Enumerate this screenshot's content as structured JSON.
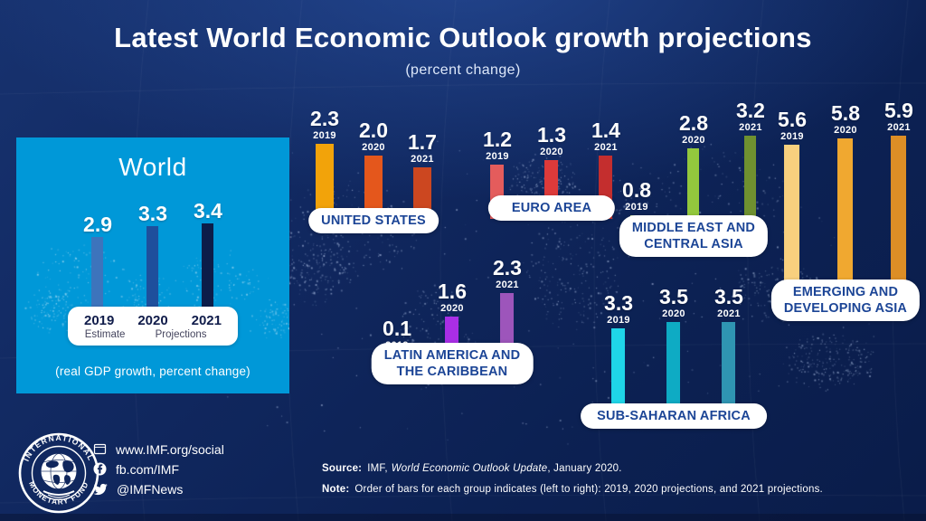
{
  "header": {
    "title": "Latest World Economic Outlook growth projections",
    "subtitle": "(percent change)"
  },
  "world_panel": {
    "title": "World",
    "caption": "(real GDP growth, percent change)",
    "panel_color": "#0098d8",
    "legend": {
      "years": [
        "2019",
        "2020",
        "2021"
      ],
      "estimate_label": "Estimate",
      "projections_label": "Projections"
    }
  },
  "chart_data": {
    "type": "bar",
    "title": "Latest World Economic Outlook growth projections",
    "subtitle": "(percent change)",
    "unit": "real GDP growth, percent change",
    "years": [
      "2019",
      "2020",
      "2021"
    ],
    "year_notes": {
      "2019": "Estimate",
      "2020": "Projections",
      "2021": "Projections"
    },
    "legend_position": "world-panel pill",
    "grid": false,
    "groups": [
      {
        "label": "World",
        "label_lines": [
          "World"
        ],
        "values": [
          2.9,
          3.3,
          3.4
        ],
        "colors": [
          "#3d74bc",
          "#1e4f9c",
          "#0c1d49"
        ]
      },
      {
        "label": "UNITED STATES",
        "label_lines": [
          "UNITED STATES"
        ],
        "values": [
          2.3,
          2.0,
          1.7
        ],
        "colors": [
          "#f2a30a",
          "#e4571c",
          "#cc4720"
        ]
      },
      {
        "label": "EURO AREA",
        "label_lines": [
          "EURO AREA"
        ],
        "values": [
          1.2,
          1.3,
          1.4
        ],
        "colors": [
          "#e45c5c",
          "#dd3a3a",
          "#c42e2e"
        ]
      },
      {
        "label": "MIDDLE EAST AND CENTRAL ASIA",
        "label_lines": [
          "MIDDLE EAST AND",
          "CENTRAL ASIA"
        ],
        "values": [
          0.8,
          2.8,
          3.2
        ],
        "colors": [
          "#c9dc9e",
          "#93c83d",
          "#6f9130"
        ]
      },
      {
        "label": "EMERGING AND DEVELOPING ASIA",
        "label_lines": [
          "EMERGING AND",
          "DEVELOPING ASIA"
        ],
        "values": [
          5.6,
          5.8,
          5.9
        ],
        "colors": [
          "#f8d07e",
          "#f0a830",
          "#dd8e26"
        ]
      },
      {
        "label": "LATIN AMERICA AND THE CARIBBEAN",
        "label_lines": [
          "LATIN AMERICA AND",
          "THE CARIBBEAN"
        ],
        "values": [
          0.1,
          1.6,
          2.3
        ],
        "colors": [
          "#dccdee",
          "#a92ee6",
          "#9d55bb"
        ]
      },
      {
        "label": "SUB-SAHARAN AFRICA",
        "label_lines": [
          "SUB-SAHARAN AFRICA"
        ],
        "values": [
          3.3,
          3.5,
          3.5
        ],
        "colors": [
          "#1fd5e8",
          "#0eabc4",
          "#2f95b2"
        ]
      }
    ]
  },
  "footer": {
    "logo": {
      "line1": "INTERNATIONAL",
      "line2": "MONETARY FUND"
    },
    "social": [
      {
        "icon": "website-icon",
        "text": "www.IMF.org/social"
      },
      {
        "icon": "facebook-icon",
        "text": "fb.com/IMF"
      },
      {
        "icon": "twitter-icon",
        "text": "@IMFNews"
      }
    ],
    "source_label": "Source:",
    "source_pre": "IMF,",
    "source_italic": "World Economic Outlook Update",
    "source_post": ", January 2020.",
    "note_label": "Note:",
    "note_text": "Order of bars for each group indicates (left to right): 2019, 2020 projections, and 2021 projections."
  }
}
